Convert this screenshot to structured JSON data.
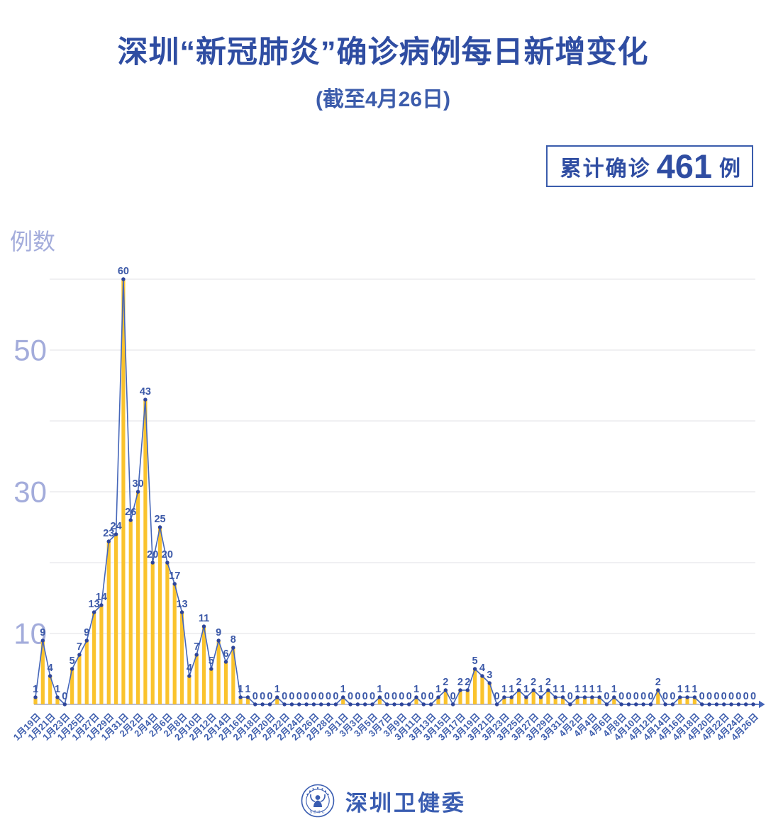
{
  "header": {
    "title": "深圳“新冠肺炎”确诊病例每日新增变化",
    "subtitle": "(截至4月26日)",
    "badge": {
      "prefix": "累计确诊",
      "value": "461",
      "suffix": "例"
    }
  },
  "footer": {
    "org_name": "深圳卫健委",
    "logo_text": "SZHC"
  },
  "chart_data": {
    "type": "bar",
    "title": "深圳“新冠肺炎”确诊病例每日新增变化",
    "ylabel": "例数",
    "xlabel": "",
    "ylim": [
      0,
      62
    ],
    "gridline_step": 10,
    "y_ticks_labeled": [
      10,
      30,
      50
    ],
    "grid": "on",
    "date_start": "1月19日",
    "date_end": "4月26日",
    "cumulative_total": 461,
    "x_tick_labels": [
      "1月19日",
      "1月21日",
      "1月23日",
      "1月25日",
      "1月27日",
      "1月29日",
      "1月31日",
      "2月2日",
      "2月4日",
      "2月6日",
      "2月8日",
      "2月10日",
      "2月12日",
      "2月14日",
      "2月16日",
      "2月18日",
      "2月20日",
      "2月22日",
      "2月24日",
      "2月26日",
      "2月28日",
      "3月1日",
      "3月3日",
      "3月5日",
      "3月7日",
      "3月9日",
      "3月11日",
      "3月13日",
      "3月15日",
      "3月17日",
      "3月19日",
      "3月21日",
      "3月23日",
      "3月25日",
      "3月27日",
      "3月29日",
      "3月31日",
      "4月2日",
      "4月4日",
      "4月6日",
      "4月8日",
      "4月10日",
      "4月12日",
      "4月14日",
      "4月16日",
      "4月18日",
      "4月20日",
      "4月22日",
      "4月24日",
      "4月26日"
    ],
    "values": [
      1,
      9,
      4,
      1,
      0,
      5,
      7,
      9,
      13,
      14,
      23,
      24,
      60,
      26,
      30,
      43,
      20,
      25,
      20,
      17,
      13,
      4,
      7,
      11,
      5,
      9,
      6,
      8,
      1,
      1,
      0,
      0,
      0,
      1,
      0,
      0,
      0,
      0,
      0,
      0,
      0,
      0,
      1,
      0,
      0,
      0,
      0,
      1,
      0,
      0,
      0,
      0,
      1,
      0,
      0,
      1,
      2,
      0,
      2,
      2,
      5,
      4,
      3,
      0,
      1,
      1,
      2,
      1,
      2,
      1,
      2,
      1,
      1,
      0,
      1,
      1,
      1,
      1,
      0,
      1,
      0,
      0,
      0,
      0,
      0,
      2,
      0,
      0,
      1,
      1,
      1,
      0,
      0,
      0,
      0,
      0,
      0,
      0,
      0
    ],
    "colors": {
      "bar": "#FAC32D",
      "line": "#4566B8",
      "point": "#2E459A",
      "value_label": "#3C59A8",
      "date_label": "#3F5FAE",
      "axis_label": "#A3ACDB",
      "grid": "#ECECEE",
      "axis_line": "#B7BCD8",
      "accent": "#2F4DA2"
    }
  }
}
